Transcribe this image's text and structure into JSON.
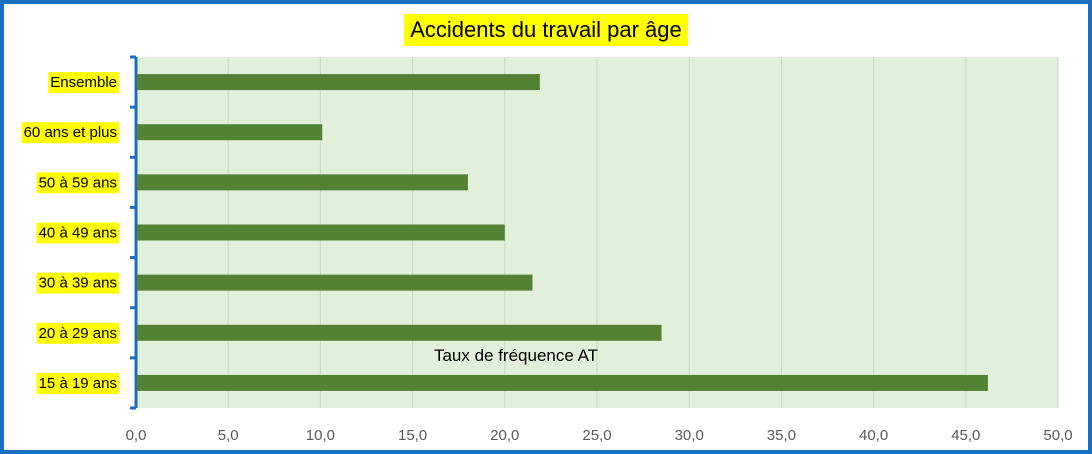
{
  "chart_data": {
    "type": "bar",
    "orientation": "horizontal",
    "title": "Accidents du travail par âge",
    "categories": [
      "Ensemble",
      "60 ans et plus",
      "50 à 59 ans",
      "40 à 49 ans",
      "30 à 39 ans",
      "20 à 29 ans",
      "15 à 19 ans"
    ],
    "series": [
      {
        "name": "Taux de fréquence AT",
        "values": [
          21.9,
          10.1,
          18.0,
          20.0,
          21.5,
          28.5,
          46.2
        ]
      }
    ],
    "xlim": [
      0,
      50
    ],
    "x_ticks": [
      "0,0",
      "5,0",
      "10,0",
      "15,0",
      "20,0",
      "25,0",
      "30,0",
      "35,0",
      "40,0",
      "45,0",
      "50,0"
    ],
    "grid": true,
    "colors": {
      "bar": "#548235",
      "plot_bg": "#e2efda",
      "category_highlight": "#ffff00",
      "frame": "#1b6fc0",
      "axis": "#1b6fc0"
    }
  }
}
